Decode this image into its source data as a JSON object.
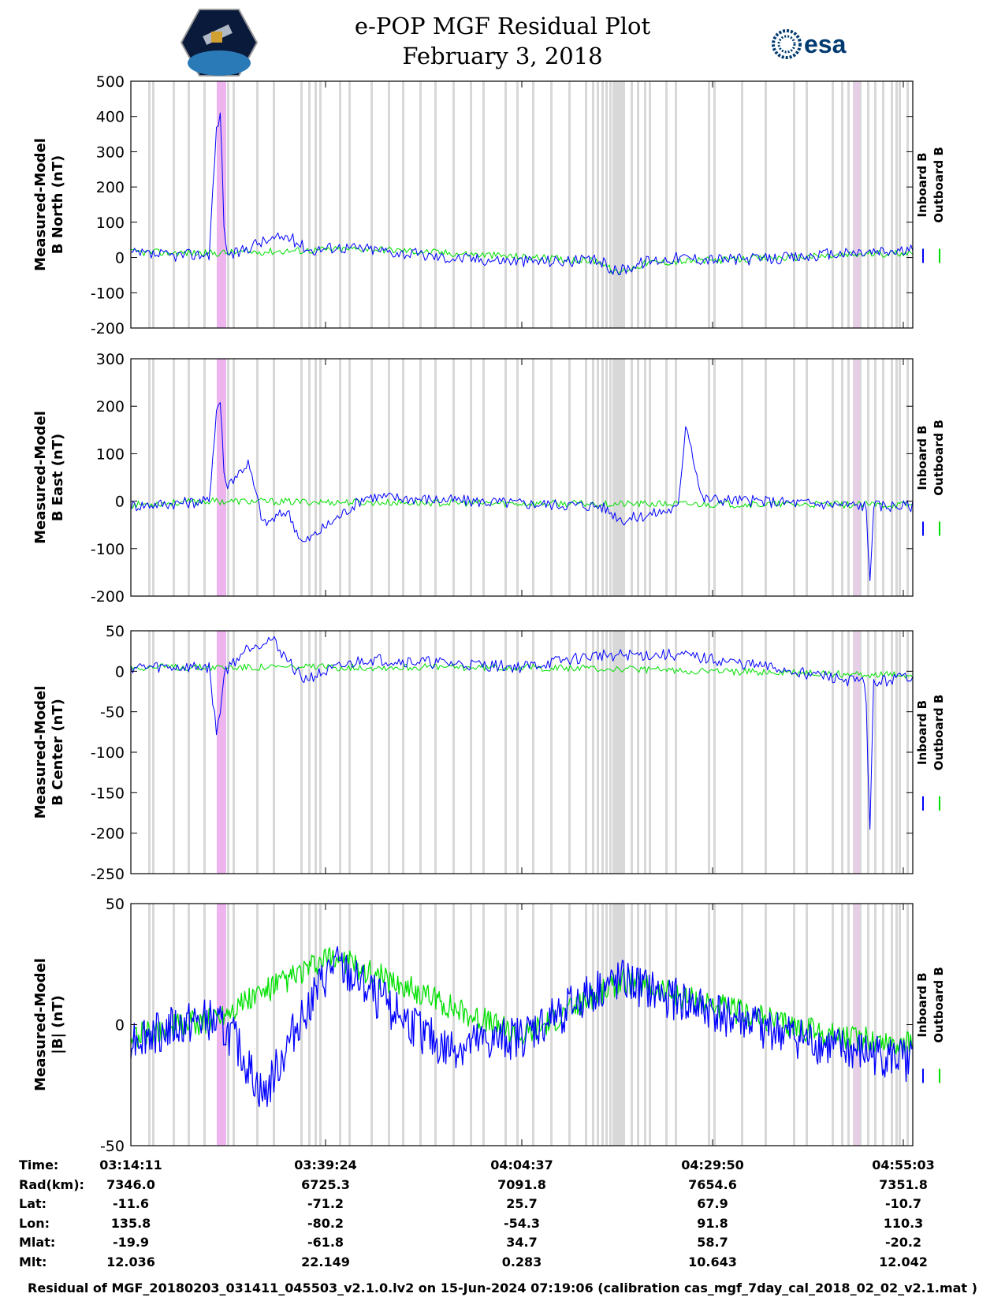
{
  "header": {
    "title_line1": "e-POP MGF Residual Plot",
    "title_line2": "February 3, 2018",
    "left_logo": "cassiope-mission-logo",
    "right_logo_text": "esa"
  },
  "colors": {
    "inboard": "#0000ff",
    "outboard": "#00e000",
    "gap_shading": "#d8d8d8",
    "highlight_shading": "#eeb4ee",
    "highlight_shading_2": "#e6cfe6"
  },
  "chart_data": [
    {
      "type": "line",
      "ylabel": [
        "Measured-Model",
        "B North (nT)"
      ],
      "ylim": [
        -200,
        500
      ],
      "yticks": [
        500,
        400,
        300,
        200,
        100,
        0,
        -100,
        -200
      ],
      "legend": [
        "Inboard B",
        "Outboard B"
      ],
      "legend_placement": "right",
      "series": [
        {
          "name": "Inboard B",
          "x": [
            0,
            0.05,
            0.1,
            0.11,
            0.115,
            0.12,
            0.13,
            0.16,
            0.2,
            0.23,
            0.26,
            0.3,
            0.4,
            0.5,
            0.6,
            0.62,
            0.66,
            0.7,
            0.75,
            0.8,
            0.85,
            0.9,
            1.0
          ],
          "values": [
            10,
            5,
            10,
            380,
            400,
            30,
            5,
            40,
            60,
            20,
            30,
            25,
            0,
            -10,
            -10,
            -40,
            -10,
            0,
            -5,
            -5,
            0,
            10,
            20
          ]
        },
        {
          "name": "Outboard B",
          "x": [
            0,
            0.1,
            0.3,
            0.6,
            0.62,
            0.66,
            0.9,
            1.0
          ],
          "values": [
            15,
            12,
            25,
            -10,
            -45,
            -15,
            5,
            15
          ]
        }
      ]
    },
    {
      "type": "line",
      "ylabel": [
        "Measured-Model",
        "B East (nT)"
      ],
      "ylim": [
        -200,
        300
      ],
      "yticks": [
        300,
        200,
        100,
        0,
        -100,
        -200
      ],
      "legend": [
        "Inboard B",
        "Outboard B"
      ],
      "legend_placement": "right",
      "series": [
        {
          "name": "Inboard B",
          "x": [
            0,
            0.05,
            0.1,
            0.11,
            0.115,
            0.12,
            0.15,
            0.17,
            0.2,
            0.22,
            0.3,
            0.5,
            0.6,
            0.63,
            0.7,
            0.71,
            0.73,
            0.8,
            0.94,
            0.945,
            0.95,
            1.0
          ],
          "values": [
            -10,
            -5,
            0,
            200,
            210,
            30,
            80,
            -50,
            -20,
            -90,
            10,
            -5,
            -10,
            -40,
            -15,
            170,
            5,
            0,
            -10,
            -170,
            -10,
            -10
          ]
        },
        {
          "name": "Outboard B",
          "x": [
            0,
            0.03,
            0.1,
            0.5,
            1.0
          ],
          "values": [
            -8,
            -5,
            0,
            -5,
            -8
          ]
        }
      ]
    },
    {
      "type": "line",
      "ylabel": [
        "Measured-Model",
        "B Center (nT)"
      ],
      "ylim": [
        -250,
        50
      ],
      "yticks": [
        50,
        0,
        -50,
        -100,
        -150,
        -200,
        -250
      ],
      "legend": [
        "Inboard B",
        "Outboard B"
      ],
      "legend_placement": "right",
      "series": [
        {
          "name": "Inboard B",
          "x": [
            0,
            0.1,
            0.11,
            0.12,
            0.15,
            0.18,
            0.22,
            0.3,
            0.5,
            0.6,
            0.7,
            0.85,
            0.94,
            0.945,
            0.95,
            1.0
          ],
          "values": [
            5,
            5,
            -80,
            0,
            30,
            40,
            -10,
            15,
            5,
            20,
            20,
            0,
            -15,
            -210,
            -15,
            -5
          ]
        },
        {
          "name": "Outboard B",
          "x": [
            0,
            0.03,
            0.1,
            0.5,
            1.0
          ],
          "values": [
            5,
            5,
            5,
            5,
            -5
          ]
        }
      ]
    },
    {
      "type": "line",
      "ylabel": [
        "Measured-Model",
        "|B| (nT)"
      ],
      "ylim": [
        -50,
        50
      ],
      "yticks": [
        50,
        0,
        -50
      ],
      "legend": [
        "Inboard B",
        "Outboard B"
      ],
      "legend_placement": "right",
      "series": [
        {
          "name": "Inboard B",
          "x": [
            0,
            0.1,
            0.13,
            0.17,
            0.22,
            0.26,
            0.3,
            0.4,
            0.5,
            0.6,
            0.63,
            0.7,
            0.8,
            0.9,
            1.0
          ],
          "values": [
            -5,
            2,
            -5,
            -30,
            5,
            25,
            15,
            -10,
            -5,
            15,
            18,
            10,
            0,
            -10,
            -15
          ]
        },
        {
          "name": "Outboard B",
          "x": [
            0,
            0.1,
            0.26,
            0.5,
            0.63,
            0.9,
            1.0
          ],
          "values": [
            -5,
            2,
            28,
            -5,
            18,
            -5,
            -8
          ]
        }
      ]
    }
  ],
  "info_table": {
    "row_labels": [
      "Time:",
      "Rad(km):",
      "Lat:",
      "Lon:",
      "Mlat:",
      "Mlt:"
    ],
    "columns": [
      {
        "time": "03:14:11",
        "rad": "7346.0",
        "lat": "-11.6",
        "lon": "135.8",
        "mlat": "-19.9",
        "mlt": "12.036"
      },
      {
        "time": "03:39:24",
        "rad": "6725.3",
        "lat": "-71.2",
        "lon": "-80.2",
        "mlat": "-61.8",
        "mlt": "22.149"
      },
      {
        "time": "04:04:37",
        "rad": "7091.8",
        "lat": "25.7",
        "lon": "-54.3",
        "mlat": "34.7",
        "mlt": "0.283"
      },
      {
        "time": "04:29:50",
        "rad": "7654.6",
        "lat": "67.9",
        "lon": "91.8",
        "mlat": "58.7",
        "mlt": "10.643"
      },
      {
        "time": "04:55:03",
        "rad": "7351.8",
        "lat": "-10.7",
        "lon": "110.3",
        "mlat": "-20.2",
        "mlt": "12.042"
      }
    ]
  },
  "footer": "Residual of MGF_20180203_031411_045503_v2.1.0.lv2 on 15-Jun-2024 07:19:06 (calibration cas_mgf_7day_cal_2018_02_02_v2.1.mat )"
}
